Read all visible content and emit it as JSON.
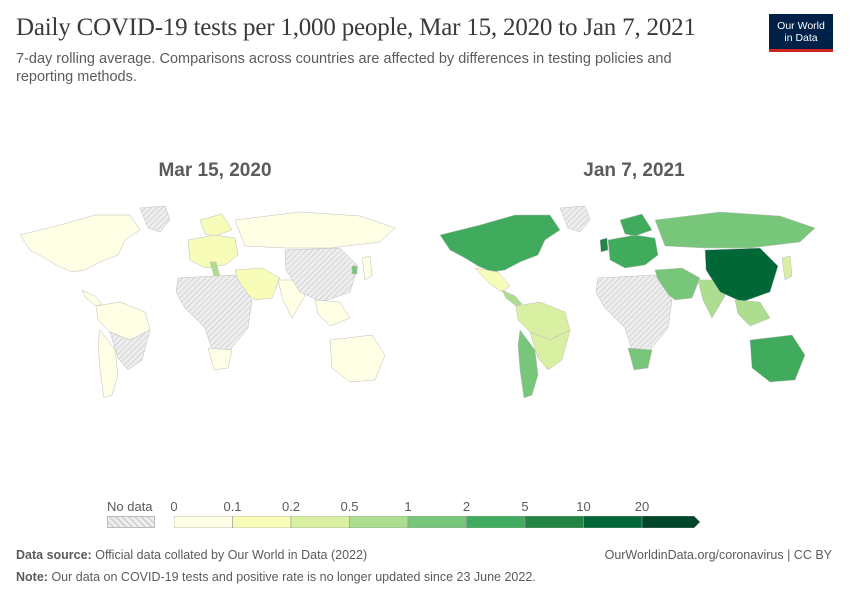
{
  "title": "Daily COVID-19 tests per 1,000 people, Mar 15, 2020 to Jan 7, 2021",
  "subtitle": "7-day rolling average. Comparisons across countries are affected by differences in testing policies and reporting methods.",
  "logo": {
    "line1": "Our World",
    "line2": "in Data"
  },
  "maps": {
    "left": {
      "date": "Mar 15, 2020"
    },
    "right": {
      "date": "Jan 7, 2021"
    }
  },
  "legend": {
    "no_data_label": "No data",
    "ticks": [
      "0",
      "0.1",
      "0.2",
      "0.5",
      "1",
      "2",
      "5",
      "10",
      "20"
    ],
    "colors": [
      "#ffffe5",
      "#f7fcb9",
      "#d9f0a3",
      "#addd8e",
      "#78c679",
      "#41ab5d",
      "#238443",
      "#006837",
      "#004529"
    ],
    "no_data_color": "#e6e6e6"
  },
  "map_data": {
    "Mar 15, 2020": {
      "North America": "0-0.1",
      "Greenland": "no-data",
      "Central America": "0-0.1",
      "South America north": "0-0.1",
      "South America south": "0-0.1",
      "Brazil": "no-data",
      "Europe": "0.1-0.2",
      "Italy": "0.5-1",
      "Scandinavia": "0.1-0.2",
      "Russia": "0-0.1",
      "Middle East": "0.1-0.2",
      "Africa": "no-data",
      "South Africa": "0-0.1",
      "India": "0-0.1",
      "China": "no-data",
      "Southeast Asia": "0-0.1",
      "Australia": "0-0.1",
      "Japan": "0-0.1",
      "Korea": "1-2"
    },
    "Jan 7, 2021": {
      "North America": "2-5",
      "Greenland": "no-data",
      "Mexico": "0.1-0.2",
      "Central America": "0.5-1",
      "South America north": "0.2-0.5",
      "South America south": "1-2",
      "Brazil": "0.2-0.5",
      "Europe": "2-5",
      "UK": "5-10",
      "Scandinavia": "2-5",
      "Russia": "1-2",
      "Middle East": "1-2",
      "Africa": "no-data",
      "South Africa": "1-2",
      "India": "0.5-1",
      "China": "10-20",
      "Southeast Asia": "0.5-1",
      "Australia": "2-5",
      "Japan": "0.2-0.5"
    }
  },
  "footer": {
    "source_label": "Data source:",
    "source_text": "Official data collated by Our World in Data (2022)",
    "url_text": "OurWorldinData.org/coronavirus | CC BY",
    "note_label": "Note:",
    "note_text": "Our data on COVID-19 tests and positive rate is no longer updated since 23 June 2022."
  }
}
